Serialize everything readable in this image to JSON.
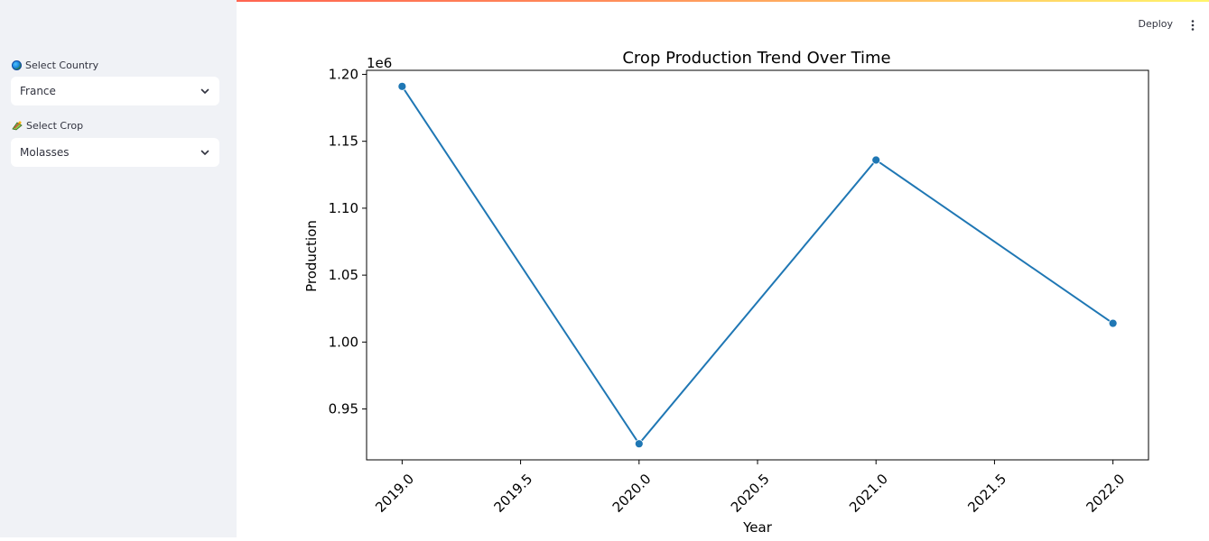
{
  "sidebar": {
    "country_label": "Select Country",
    "country_value": "France",
    "crop_label": "Select Crop",
    "crop_value": "Molasses"
  },
  "header": {
    "deploy_label": "Deploy"
  },
  "colors": {
    "line": "#1f77b4",
    "sidebar_bg": "#f0f2f6"
  },
  "chart_data": {
    "type": "line",
    "title": "Crop Production Trend Over Time",
    "xlabel": "Year",
    "ylabel": "Production",
    "offset_text": "1e6",
    "x": [
      2019.0,
      2020.0,
      2021.0,
      2022.0
    ],
    "y": [
      1.191,
      0.924,
      1.136,
      1.014
    ],
    "xlim": [
      2018.85,
      2022.15
    ],
    "ylim": [
      0.912,
      1.203
    ],
    "x_ticks": [
      2019.0,
      2019.5,
      2020.0,
      2020.5,
      2021.0,
      2021.5,
      2022.0
    ],
    "x_tick_labels": [
      "2019.0",
      "2019.5",
      "2020.0",
      "2020.5",
      "2021.0",
      "2021.5",
      "2022.0"
    ],
    "y_ticks": [
      0.95,
      1.0,
      1.05,
      1.1,
      1.15,
      1.2
    ],
    "y_tick_labels": [
      "0.95",
      "1.00",
      "1.05",
      "1.10",
      "1.15",
      "1.20"
    ],
    "grid": false,
    "markers": true
  }
}
